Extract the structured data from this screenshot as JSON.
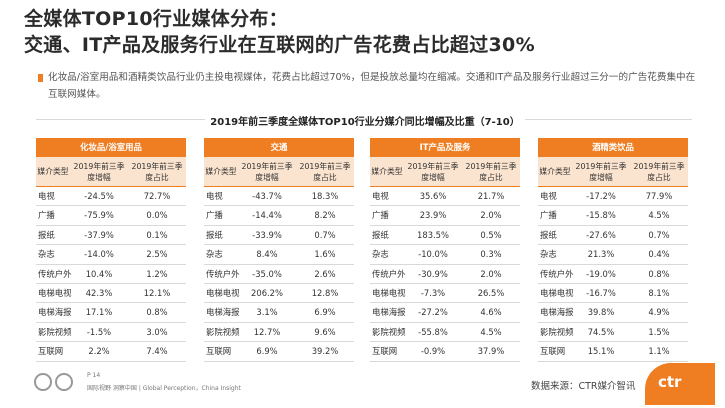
{
  "title": {
    "line1": "全媒体TOP10行业媒体分布：",
    "line2": "交通、IT产品及服务行业在互联网的广告花费占比超过30%"
  },
  "description": "化妆品/浴室用品和酒精类饮品行业仍主投电视媒体，花费占比超过70%，但是投放总量均在缩减。交通和IT产品及服务行业超过三分一的广告花费集中在互联网媒体。",
  "section_title": "2019年前三季度全媒体TOP10行业分媒介同比增幅及比重（7-10）",
  "col_headers": {
    "media_type": "媒介类型",
    "growth": "2019年前三季度增幅",
    "share": "2019年前三季度占比"
  },
  "panels": [
    {
      "name": "化妆品/浴室用品",
      "rows": [
        {
          "media": "电视",
          "growth": "-24.5%",
          "share": "72.7%"
        },
        {
          "media": "广播",
          "growth": "-75.9%",
          "share": "0.0%"
        },
        {
          "media": "报纸",
          "growth": "-37.9%",
          "share": "0.1%"
        },
        {
          "media": "杂志",
          "growth": "-14.0%",
          "share": "2.5%"
        },
        {
          "media": "传统户外",
          "growth": "10.4%",
          "share": "1.2%"
        },
        {
          "media": "电梯电视",
          "growth": "42.3%",
          "share": "12.1%"
        },
        {
          "media": "电梯海报",
          "growth": "17.1%",
          "share": "0.8%"
        },
        {
          "media": "影院视频",
          "growth": "-1.5%",
          "share": "3.0%"
        },
        {
          "media": "互联网",
          "growth": "2.2%",
          "share": "7.4%"
        }
      ]
    },
    {
      "name": "交通",
      "rows": [
        {
          "media": "电视",
          "growth": "-43.7%",
          "share": "18.3%"
        },
        {
          "media": "广播",
          "growth": "-14.4%",
          "share": "8.2%"
        },
        {
          "media": "报纸",
          "growth": "-33.9%",
          "share": "0.7%"
        },
        {
          "media": "杂志",
          "growth": "8.4%",
          "share": "1.6%"
        },
        {
          "media": "传统户外",
          "growth": "-35.0%",
          "share": "2.6%"
        },
        {
          "media": "电梯电视",
          "growth": "206.2%",
          "share": "12.8%"
        },
        {
          "media": "电梯海报",
          "growth": "3.1%",
          "share": "6.9%"
        },
        {
          "media": "影院视频",
          "growth": "12.7%",
          "share": "9.6%"
        },
        {
          "media": "互联网",
          "growth": "6.9%",
          "share": "39.2%"
        }
      ]
    },
    {
      "name": "IT产品及服务",
      "rows": [
        {
          "media": "电视",
          "growth": "35.6%",
          "share": "21.7%"
        },
        {
          "media": "广播",
          "growth": "23.9%",
          "share": "2.0%"
        },
        {
          "media": "报纸",
          "growth": "183.5%",
          "share": "0.5%"
        },
        {
          "media": "杂志",
          "growth": "-10.0%",
          "share": "0.3%"
        },
        {
          "media": "传统户外",
          "growth": "-30.9%",
          "share": "2.0%"
        },
        {
          "media": "电梯电视",
          "growth": "-7.3%",
          "share": "26.5%"
        },
        {
          "media": "电梯海报",
          "growth": "-27.2%",
          "share": "4.6%"
        },
        {
          "media": "影院视频",
          "growth": "-55.8%",
          "share": "4.5%"
        },
        {
          "media": "互联网",
          "growth": "-0.9%",
          "share": "37.9%"
        }
      ]
    },
    {
      "name": "酒精类饮品",
      "rows": [
        {
          "media": "电视",
          "growth": "-17.2%",
          "share": "77.9%"
        },
        {
          "media": "广播",
          "growth": "-15.8%",
          "share": "4.5%"
        },
        {
          "media": "报纸",
          "growth": "-27.6%",
          "share": "0.7%"
        },
        {
          "media": "杂志",
          "growth": "21.3%",
          "share": "0.4%"
        },
        {
          "media": "传统户外",
          "growth": "-19.0%",
          "share": "0.8%"
        },
        {
          "media": "电梯电视",
          "growth": "-16.7%",
          "share": "8.1%"
        },
        {
          "media": "电梯海报",
          "growth": "39.8%",
          "share": "4.9%"
        },
        {
          "media": "影院视频",
          "growth": "74.5%",
          "share": "1.5%"
        },
        {
          "media": "互联网",
          "growth": "15.1%",
          "share": "1.1%"
        }
      ]
    }
  ],
  "footer": {
    "page": "P 14",
    "tagline": "国际视野 洞察中国 | Global Perception，China Insight",
    "source": "数据来源：CTR媒介智讯",
    "logo_text": "ctr"
  },
  "colors": {
    "accent": "#ef7d22",
    "header_fill": "#fbe4cf"
  }
}
